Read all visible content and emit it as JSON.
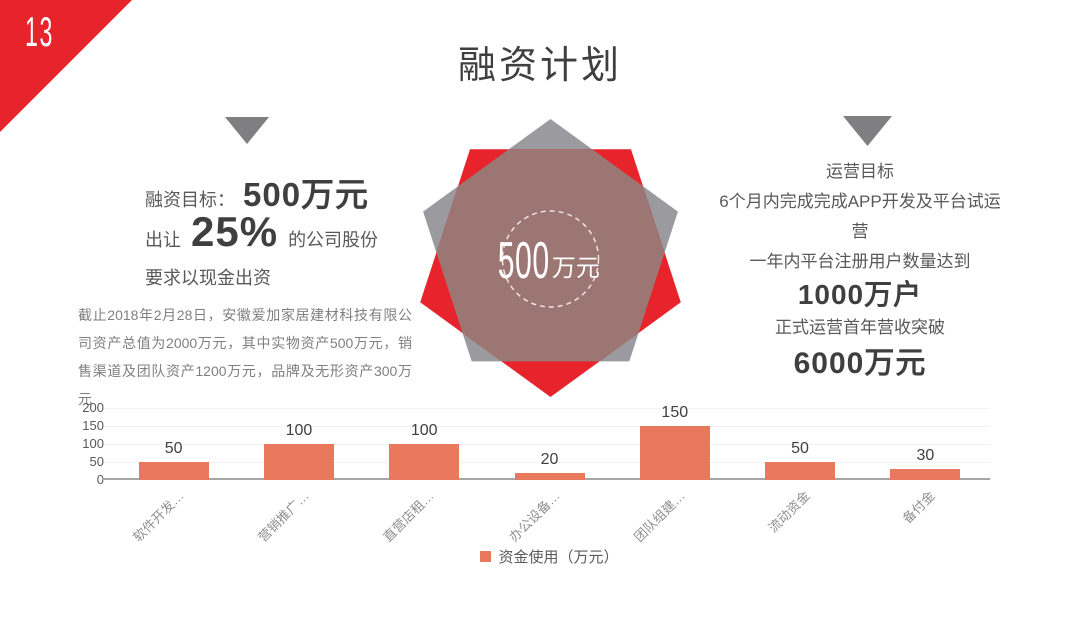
{
  "slide": {
    "page_number": "13",
    "title": "融资计划"
  },
  "left_panel": {
    "goal_label": "融资目标：",
    "goal_value": "500万元",
    "equity_prefix": "出让",
    "equity_value": "25%",
    "equity_suffix": "的公司股份",
    "cash_line": "要求以现金出资",
    "note": "截止2018年2月28日，安徽爱加家居建材科技有限公司资产总值为2000万元，其中实物资产500万元，销售渠道及团队资产1200万元，品牌及无形资产300万元"
  },
  "center_badge": {
    "amount": "500",
    "unit": "万元"
  },
  "right_panel": {
    "title": "运营目标",
    "line1": "6个月内完成完成APP开发及平台试运营",
    "line2": "一年内平台注册用户数量达到",
    "highlight1": "1000万户",
    "line3": "正式运营首年营收突破",
    "highlight2": "6000万元"
  },
  "chart_data": {
    "type": "bar",
    "categories": [
      "软件开发…",
      "营销推广…",
      "直营店租…",
      "办公设备…",
      "团队组建…",
      "流动资金",
      "备付金"
    ],
    "values": [
      50,
      100,
      100,
      20,
      150,
      50,
      30
    ],
    "series_name": "资金使用（万元）",
    "ylim": [
      0,
      200
    ],
    "yticks": [
      0,
      50,
      100,
      150,
      200
    ],
    "grid": true,
    "legend_position": "bottom",
    "bar_color": "#E8795C"
  },
  "colors": {
    "accent_red": "#E7242B",
    "shape_gray": "#9B9B9F",
    "overlap_mauve": "#9B7673",
    "triangle_gray": "#7F7F82",
    "dashed_circle": "#F3E3DE"
  }
}
